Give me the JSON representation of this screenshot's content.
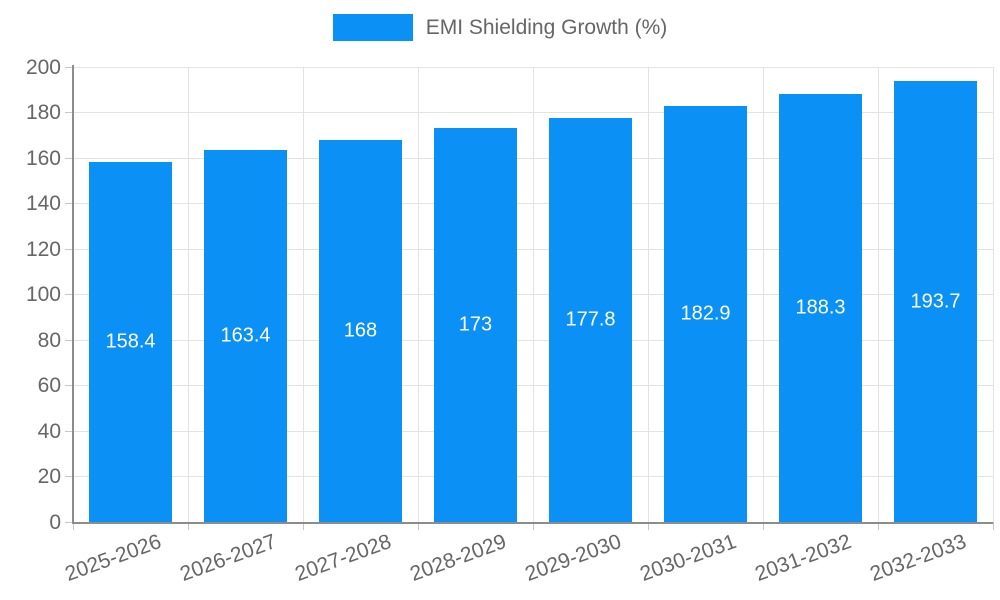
{
  "legend": {
    "label": "EMI Shielding Growth (%)"
  },
  "colors": {
    "bar": "#0b90f5",
    "grid": "#e3e3e3",
    "axis": "#8c8c8c",
    "tick": "#c7c7c7",
    "tick_label": "#666666",
    "value_label": "#ffffff",
    "legend_text": "#666666"
  },
  "chart_data": {
    "type": "bar",
    "title": "",
    "legend_label": "EMI Shielding Growth (%)",
    "legend_position": "top-center",
    "categories": [
      "2025-2026",
      "2026-2027",
      "2027-2028",
      "2028-2029",
      "2029-2030",
      "2030-2031",
      "2031-2032",
      "2032-2033"
    ],
    "values": [
      158.4,
      163.4,
      168,
      173,
      177.8,
      182.9,
      188.3,
      193.7
    ],
    "value_labels": [
      "158.4",
      "163.4",
      "168",
      "173",
      "177.8",
      "182.9",
      "188.3",
      "193.7"
    ],
    "xlabel": "",
    "ylabel": "",
    "ylim": [
      0,
      200
    ],
    "yticks": [
      0,
      20,
      40,
      60,
      80,
      100,
      120,
      140,
      160,
      180,
      200
    ],
    "grid": true,
    "x_label_rotation_deg": -20
  }
}
